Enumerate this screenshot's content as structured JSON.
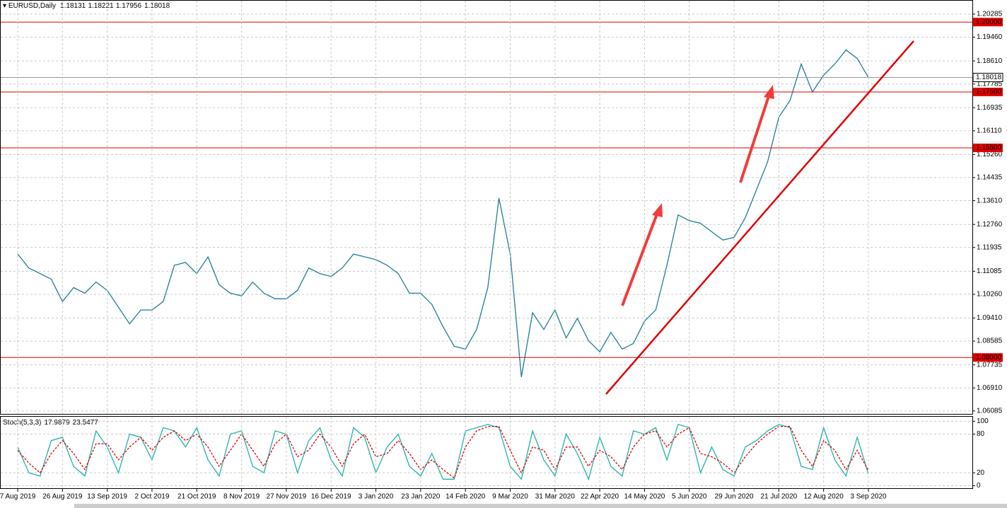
{
  "chart_data": [
    {
      "type": "line",
      "title": "EURUSD,Daily",
      "header_values": [
        1.18131,
        1.18221,
        1.17956,
        1.18018
      ],
      "categories": [
        "7 Aug 2019",
        null,
        null,
        null,
        "26 Aug 2019",
        null,
        null,
        null,
        "13 Sep 2019",
        null,
        null,
        null,
        "2 Oct 2019",
        null,
        null,
        null,
        "21 Oct 2019",
        null,
        null,
        null,
        "8 Nov 2019",
        null,
        null,
        null,
        "27 Nov 2019",
        null,
        null,
        null,
        "16 Dec 2019",
        null,
        null,
        null,
        "3 Jan 2020",
        null,
        null,
        null,
        "23 Jan 2020",
        null,
        null,
        null,
        "14 Feb 2020",
        null,
        null,
        null,
        "9 Mar 2020",
        null,
        null,
        null,
        "31 Mar 2020",
        null,
        null,
        null,
        "22 Apr 2020",
        null,
        null,
        null,
        "14 May 2020",
        null,
        null,
        null,
        "5 Jun 2020",
        null,
        null,
        null,
        "29 Jun 2020",
        null,
        null,
        null,
        "21 Jul 2020",
        null,
        null,
        null,
        "12 Aug 2020",
        null,
        null,
        null,
        "3 Sep 2020"
      ],
      "series": [
        {
          "color": "#1f7f8f",
          "values": [
            1.117,
            1.112,
            1.11,
            1.108,
            1.1,
            1.105,
            1.103,
            1.107,
            1.104,
            1.098,
            1.092,
            1.097,
            1.097,
            1.1,
            1.113,
            1.114,
            1.11,
            1.116,
            1.106,
            1.103,
            1.102,
            1.107,
            1.103,
            1.101,
            1.101,
            1.104,
            1.112,
            1.11,
            1.109,
            1.112,
            1.117,
            1.116,
            1.115,
            1.113,
            1.11,
            1.103,
            1.103,
            1.099,
            1.091,
            1.084,
            1.083,
            1.09,
            1.105,
            1.137,
            1.117,
            1.073,
            1.096,
            1.09,
            1.097,
            1.087,
            1.094,
            1.086,
            1.082,
            1.089,
            1.083,
            1.085,
            1.093,
            1.097,
            1.113,
            1.131,
            1.129,
            1.128,
            1.125,
            1.122,
            1.123,
            1.13,
            1.14,
            1.15,
            1.166,
            1.172,
            1.185,
            1.175,
            1.181,
            1.185,
            1.19,
            1.187,
            1.18018
          ]
        }
      ],
      "ylim": [
        1.0598,
        1.2079
      ],
      "yticks": [
        {
          "value": 1.20285,
          "label": "1.20285"
        },
        {
          "value": 1.1946,
          "label": "1.19460"
        },
        {
          "value": 1.1861,
          "label": "1.18610"
        },
        {
          "value": 1.17785,
          "label": "1.17785"
        },
        {
          "value": 1.16935,
          "label": "1.16935"
        },
        {
          "value": 1.1611,
          "label": "1.16110"
        },
        {
          "value": 1.1526,
          "label": "1.15260"
        },
        {
          "value": 1.14435,
          "label": "1.14435"
        },
        {
          "value": 1.1361,
          "label": "1.13610"
        },
        {
          "value": 1.1276,
          "label": "1.12760"
        },
        {
          "value": 1.11935,
          "label": "1.11935"
        },
        {
          "value": 1.11085,
          "label": "1.11085"
        },
        {
          "value": 1.1026,
          "label": "1.10260"
        },
        {
          "value": 1.0941,
          "label": "1.09410"
        },
        {
          "value": 1.08585,
          "label": "1.08585"
        },
        {
          "value": 1.07735,
          "label": "1.07735"
        },
        {
          "value": 1.0691,
          "label": "1.06910"
        },
        {
          "value": 1.06085,
          "label": "1.06085"
        }
      ],
      "levels": [
        {
          "value": 1.2,
          "label": "1.20000"
        },
        {
          "value": 1.175,
          "label": "1.17500"
        },
        {
          "value": 1.155,
          "label": "1.15500"
        },
        {
          "value": 1.08,
          "label": "1.08000"
        }
      ],
      "level_color": "#e00000",
      "last_price": 1.18018,
      "grid": true
    },
    {
      "type": "line",
      "title": "Stoch(5,3,3)",
      "header_values": [
        17.9879,
        23.5477
      ],
      "series": [
        {
          "color": "#20b2aa",
          "values": [
            60,
            20,
            15,
            70,
            75,
            30,
            15,
            85,
            60,
            20,
            80,
            75,
            40,
            90,
            85,
            60,
            90,
            40,
            15,
            80,
            85,
            30,
            20,
            85,
            80,
            20,
            70,
            90,
            40,
            15,
            90,
            75,
            20,
            60,
            80,
            30,
            15,
            50,
            10,
            10,
            85,
            90,
            95,
            90,
            30,
            10,
            85,
            40,
            15,
            80,
            50,
            10,
            75,
            30,
            15,
            85,
            80,
            90,
            40,
            95,
            90,
            20,
            60,
            25,
            15,
            60,
            70,
            85,
            95,
            90,
            30,
            25,
            90,
            40,
            15,
            75,
            17.9879
          ]
        },
        {
          "color": "#e00000",
          "dash": true,
          "values": [
            55,
            35,
            20,
            50,
            70,
            50,
            25,
            65,
            65,
            40,
            60,
            75,
            55,
            75,
            85,
            70,
            80,
            60,
            30,
            55,
            80,
            55,
            30,
            65,
            80,
            45,
            55,
            80,
            60,
            30,
            65,
            80,
            45,
            50,
            70,
            50,
            25,
            40,
            25,
            12,
            60,
            85,
            92,
            92,
            55,
            20,
            60,
            55,
            25,
            60,
            60,
            30,
            55,
            45,
            25,
            60,
            80,
            85,
            60,
            80,
            90,
            50,
            45,
            35,
            20,
            45,
            65,
            80,
            92,
            92,
            55,
            30,
            70,
            55,
            25,
            55,
            23.5477
          ]
        }
      ],
      "ylim": [
        -5,
        107
      ],
      "yticks": [
        0,
        20,
        80,
        100
      ],
      "grid": true
    }
  ]
}
